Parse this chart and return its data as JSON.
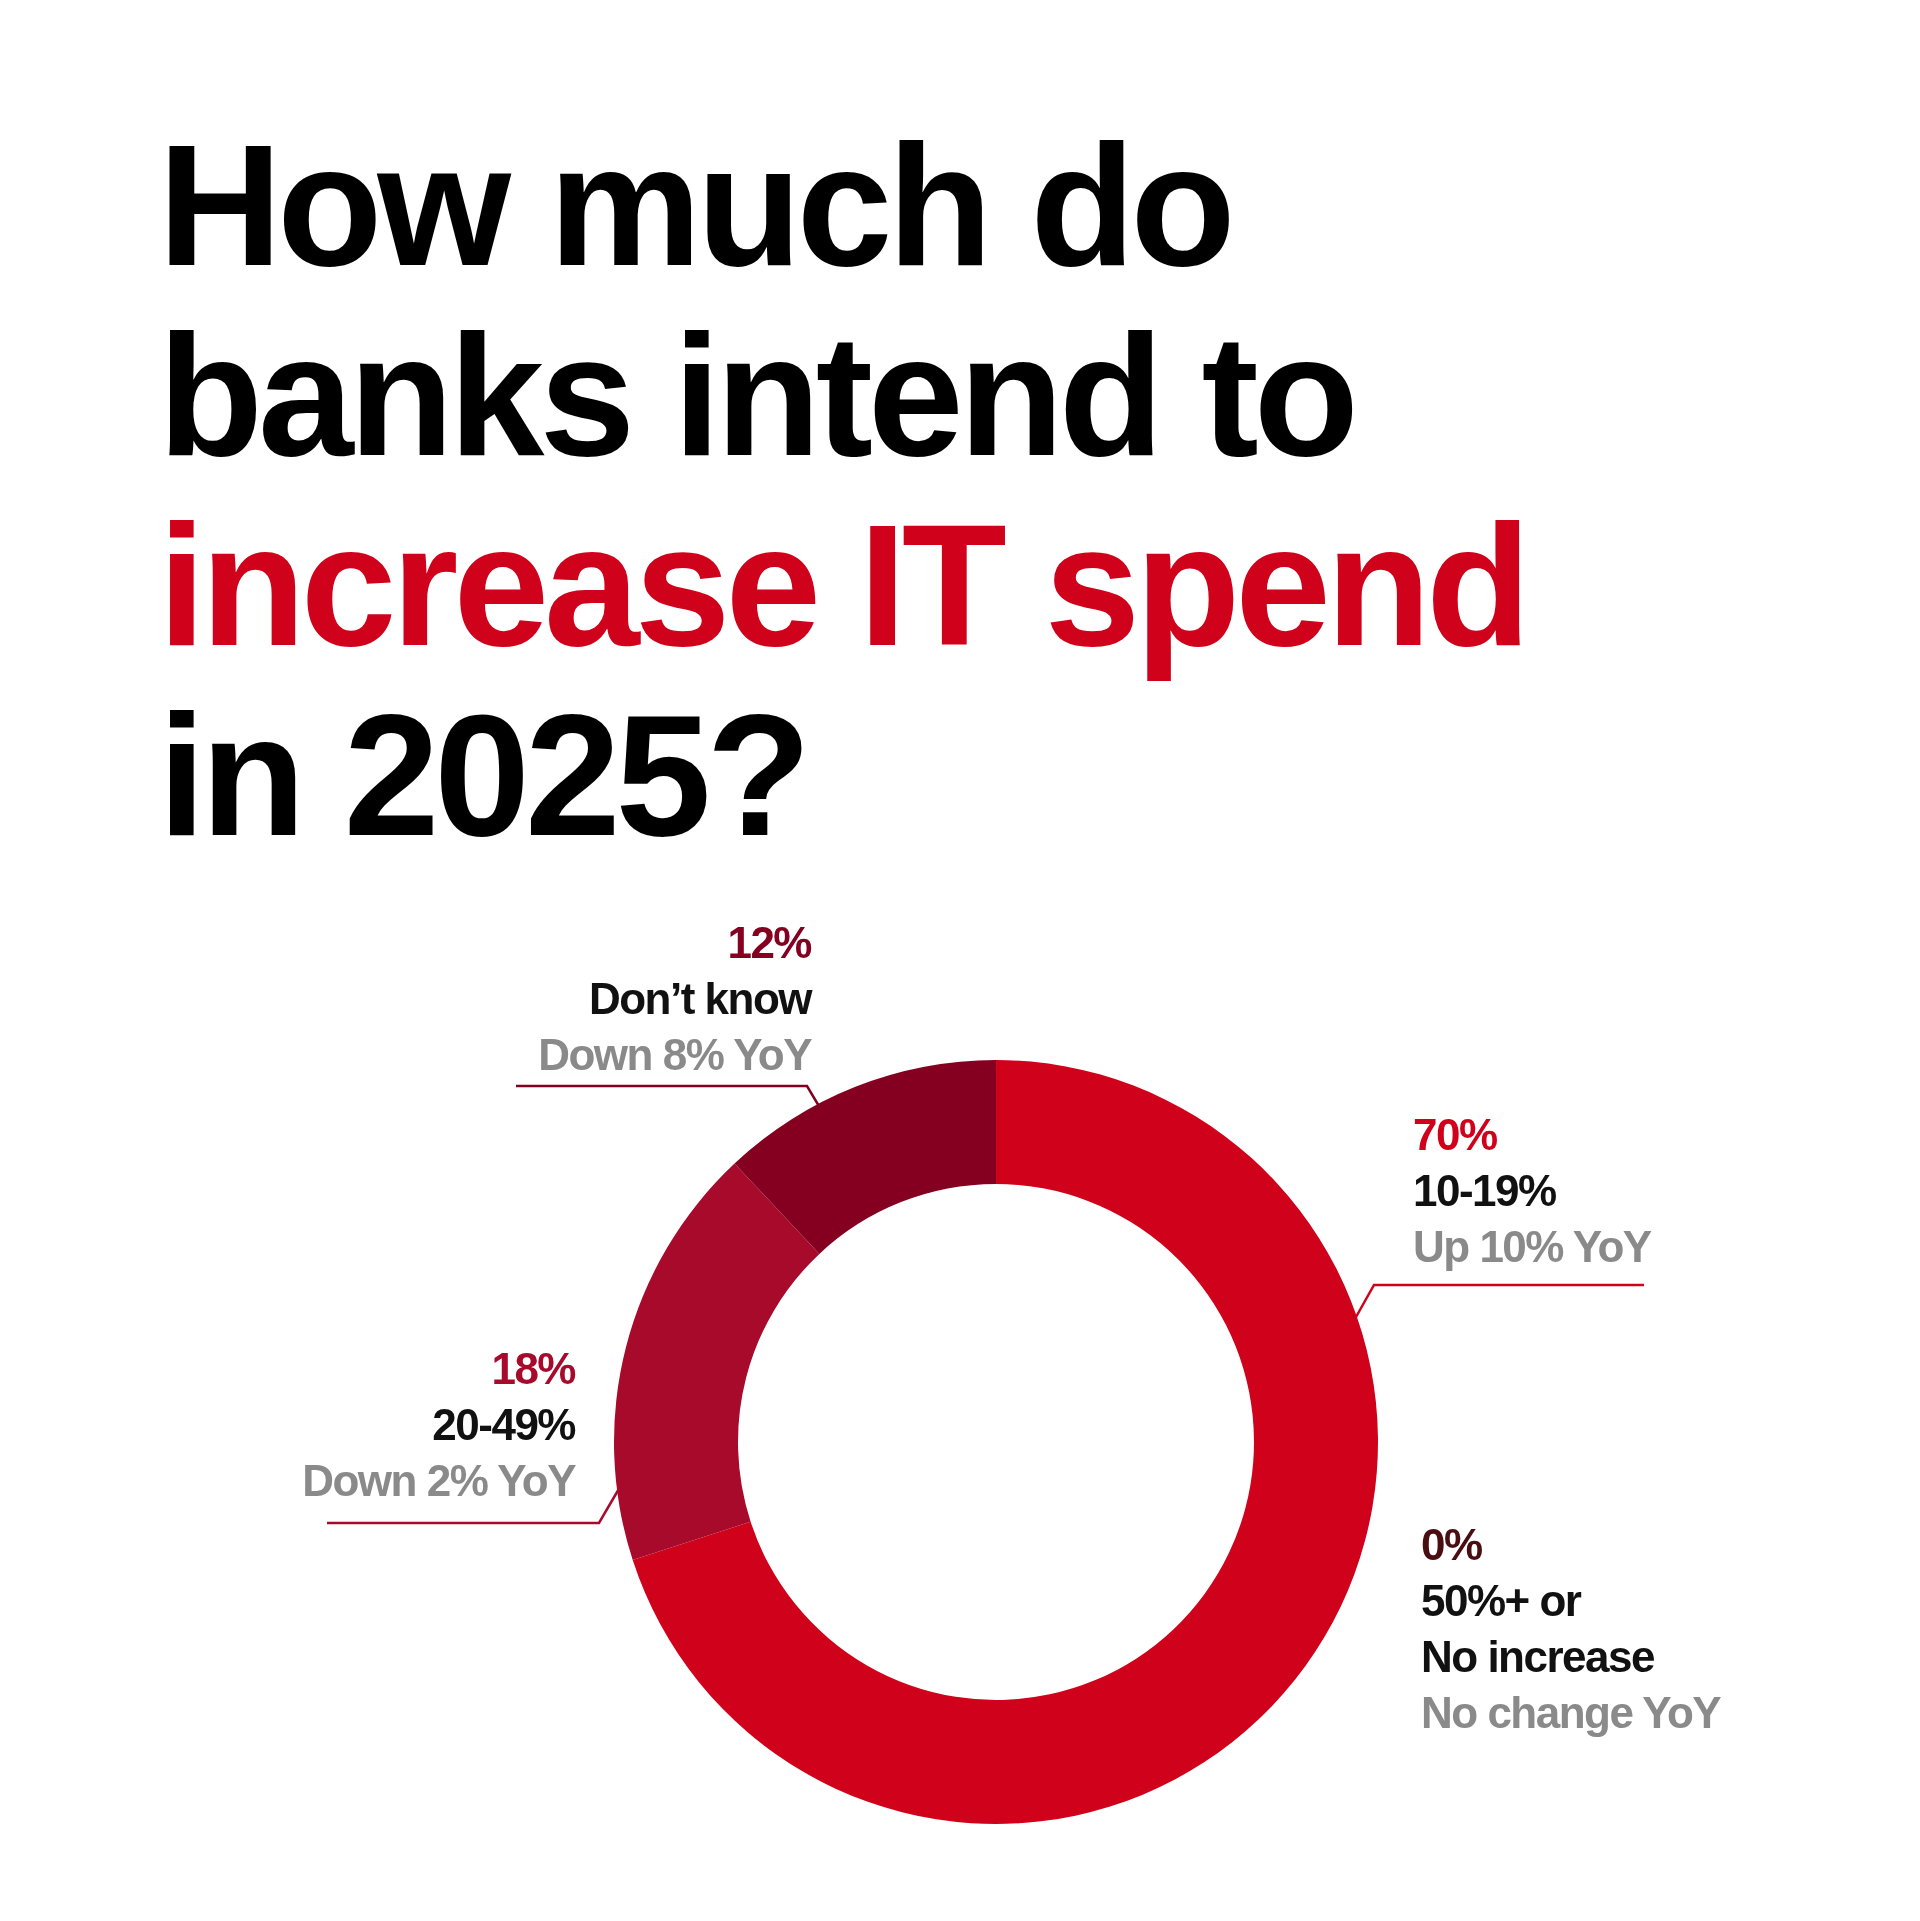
{
  "chart_data": {
    "type": "donut",
    "title": "How much do\nbanks intend to\nincrease IT spend\nin 2025?",
    "categories": [
      "10-19%",
      "20-49%",
      "Don’t know",
      "50%+ or\nNo increase"
    ],
    "values": [
      70,
      18,
      12,
      0
    ],
    "colors": [
      "#d0021b",
      "#a80a2c",
      "#850020",
      "#4a0d12"
    ],
    "value_labels": [
      "70%",
      "18%",
      "12%",
      "0%"
    ],
    "annotations": [
      "Up 10% YoY",
      "Down 2% YoY",
      "Down 8% YoY",
      "No change YoY"
    ]
  }
}
